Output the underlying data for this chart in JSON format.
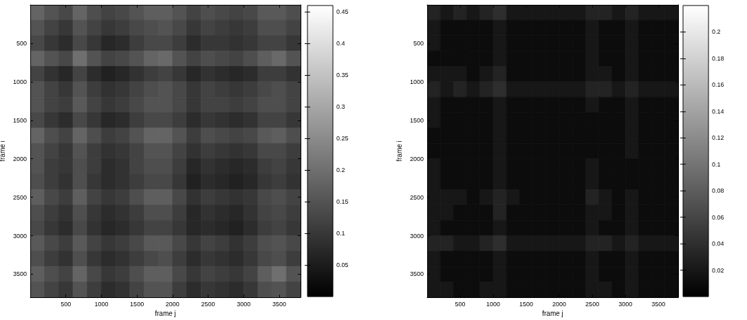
{
  "chart_data": [
    {
      "type": "heatmap",
      "xlabel": "frame j",
      "ylabel": "frame i",
      "x": [
        100,
        300,
        500,
        700,
        900,
        1100,
        1300,
        1500,
        1700,
        1900,
        2100,
        2300,
        2500,
        2700,
        2900,
        3100,
        3300,
        3500,
        3700
      ],
      "y": [
        100,
        300,
        500,
        700,
        900,
        1100,
        1300,
        1500,
        1700,
        1900,
        2100,
        2300,
        2500,
        2700,
        2900,
        3100,
        3300,
        3500,
        3700
      ],
      "xlim": [
        0,
        3800
      ],
      "ylim": [
        3800,
        0
      ],
      "xticks": [
        500,
        1000,
        1500,
        2000,
        2500,
        3000,
        3500
      ],
      "yticks": [
        500,
        1000,
        1500,
        2000,
        2500,
        3000,
        3500
      ],
      "clim": [
        0,
        0.46
      ],
      "cticks": [
        0.05,
        0.1,
        0.15,
        0.2,
        0.25,
        0.3,
        0.35,
        0.4,
        0.45
      ],
      "cells": [
        [
          0.18,
          0.15,
          0.13,
          0.18,
          0.14,
          0.12,
          0.13,
          0.15,
          0.17,
          0.17,
          0.15,
          0.12,
          0.14,
          0.13,
          0.12,
          0.13,
          0.16,
          0.16,
          0.14
        ],
        [
          0.15,
          0.12,
          0.1,
          0.15,
          0.12,
          0.1,
          0.11,
          0.13,
          0.14,
          0.15,
          0.13,
          0.1,
          0.12,
          0.11,
          0.1,
          0.11,
          0.14,
          0.14,
          0.12
        ],
        [
          0.13,
          0.1,
          0.08,
          0.13,
          0.1,
          0.07,
          0.08,
          0.11,
          0.13,
          0.13,
          0.11,
          0.08,
          0.1,
          0.1,
          0.09,
          0.1,
          0.12,
          0.12,
          0.1
        ],
        [
          0.18,
          0.15,
          0.13,
          0.2,
          0.15,
          0.12,
          0.13,
          0.15,
          0.18,
          0.19,
          0.15,
          0.12,
          0.14,
          0.13,
          0.12,
          0.14,
          0.17,
          0.19,
          0.15
        ],
        [
          0.12,
          0.09,
          0.07,
          0.12,
          0.08,
          0.06,
          0.07,
          0.09,
          0.11,
          0.12,
          0.1,
          0.07,
          0.09,
          0.08,
          0.07,
          0.08,
          0.11,
          0.11,
          0.09
        ],
        [
          0.15,
          0.12,
          0.1,
          0.15,
          0.11,
          0.09,
          0.1,
          0.12,
          0.14,
          0.15,
          0.13,
          0.1,
          0.12,
          0.11,
          0.1,
          0.11,
          0.13,
          0.14,
          0.12
        ],
        [
          0.15,
          0.12,
          0.11,
          0.16,
          0.12,
          0.1,
          0.11,
          0.13,
          0.15,
          0.15,
          0.13,
          0.1,
          0.12,
          0.12,
          0.11,
          0.12,
          0.14,
          0.14,
          0.12
        ],
        [
          0.13,
          0.1,
          0.08,
          0.13,
          0.1,
          0.07,
          0.08,
          0.11,
          0.13,
          0.13,
          0.11,
          0.08,
          0.1,
          0.09,
          0.08,
          0.09,
          0.12,
          0.12,
          0.1
        ],
        [
          0.18,
          0.14,
          0.12,
          0.18,
          0.14,
          0.11,
          0.12,
          0.15,
          0.18,
          0.18,
          0.15,
          0.11,
          0.14,
          0.13,
          0.12,
          0.13,
          0.16,
          0.17,
          0.14
        ],
        [
          0.15,
          0.12,
          0.1,
          0.15,
          0.11,
          0.09,
          0.1,
          0.12,
          0.15,
          0.15,
          0.12,
          0.09,
          0.11,
          0.1,
          0.09,
          0.1,
          0.13,
          0.13,
          0.11
        ],
        [
          0.15,
          0.11,
          0.1,
          0.14,
          0.11,
          0.08,
          0.09,
          0.12,
          0.14,
          0.14,
          0.11,
          0.07,
          0.09,
          0.08,
          0.07,
          0.08,
          0.11,
          0.12,
          0.1
        ],
        [
          0.14,
          0.11,
          0.09,
          0.14,
          0.1,
          0.08,
          0.09,
          0.11,
          0.13,
          0.13,
          0.1,
          0.06,
          0.08,
          0.07,
          0.06,
          0.07,
          0.1,
          0.11,
          0.09
        ],
        [
          0.17,
          0.13,
          0.11,
          0.17,
          0.12,
          0.1,
          0.11,
          0.14,
          0.17,
          0.17,
          0.13,
          0.09,
          0.11,
          0.1,
          0.09,
          0.1,
          0.13,
          0.14,
          0.12
        ],
        [
          0.14,
          0.11,
          0.09,
          0.14,
          0.1,
          0.08,
          0.09,
          0.11,
          0.14,
          0.14,
          0.11,
          0.07,
          0.09,
          0.08,
          0.07,
          0.09,
          0.12,
          0.13,
          0.11
        ],
        [
          0.13,
          0.1,
          0.08,
          0.13,
          0.09,
          0.07,
          0.08,
          0.1,
          0.12,
          0.12,
          0.1,
          0.07,
          0.08,
          0.07,
          0.06,
          0.08,
          0.11,
          0.12,
          0.1
        ],
        [
          0.16,
          0.13,
          0.11,
          0.16,
          0.12,
          0.1,
          0.11,
          0.13,
          0.16,
          0.16,
          0.13,
          0.1,
          0.12,
          0.11,
          0.09,
          0.11,
          0.14,
          0.15,
          0.13
        ],
        [
          0.14,
          0.11,
          0.09,
          0.14,
          0.1,
          0.08,
          0.09,
          0.11,
          0.13,
          0.14,
          0.11,
          0.08,
          0.1,
          0.09,
          0.08,
          0.1,
          0.13,
          0.14,
          0.11
        ],
        [
          0.17,
          0.14,
          0.12,
          0.18,
          0.13,
          0.1,
          0.11,
          0.14,
          0.17,
          0.17,
          0.13,
          0.1,
          0.12,
          0.11,
          0.1,
          0.12,
          0.17,
          0.2,
          0.15
        ],
        [
          0.15,
          0.12,
          0.1,
          0.15,
          0.11,
          0.08,
          0.09,
          0.12,
          0.15,
          0.15,
          0.11,
          0.08,
          0.1,
          0.09,
          0.08,
          0.1,
          0.14,
          0.15,
          0.12
        ]
      ]
    },
    {
      "type": "heatmap",
      "xlabel": "frame j",
      "ylabel": "frame i",
      "x": [
        100,
        300,
        500,
        700,
        900,
        1100,
        1300,
        1500,
        1700,
        1900,
        2100,
        2300,
        2500,
        2700,
        2900,
        3100,
        3300,
        3500,
        3700
      ],
      "y": [
        100,
        300,
        500,
        700,
        900,
        1100,
        1300,
        1500,
        1700,
        1900,
        2100,
        2300,
        2500,
        2700,
        2900,
        3100,
        3300,
        3500,
        3700
      ],
      "xlim": [
        0,
        3800
      ],
      "ylim": [
        3800,
        0
      ],
      "xticks": [
        500,
        1000,
        1500,
        2000,
        2500,
        3000,
        3500
      ],
      "yticks": [
        500,
        1000,
        1500,
        2000,
        2500,
        3000,
        3500
      ],
      "clim": [
        0,
        0.22
      ],
      "cticks": [
        0.02,
        0.04,
        0.06,
        0.08,
        0.1,
        0.12,
        0.14,
        0.16,
        0.18,
        0.2
      ],
      "cells": [
        [
          0.03,
          0.02,
          0.03,
          0.02,
          0.03,
          0.04,
          0.02,
          0.02,
          0.02,
          0.02,
          0.02,
          0.02,
          0.03,
          0.03,
          0.02,
          0.03,
          0.02,
          0.02,
          0.02
        ],
        [
          0.02,
          0.01,
          0.01,
          0.01,
          0.01,
          0.02,
          0.01,
          0.01,
          0.01,
          0.01,
          0.01,
          0.01,
          0.02,
          0.01,
          0.01,
          0.02,
          0.01,
          0.01,
          0.01
        ],
        [
          0.02,
          0.01,
          0.01,
          0.01,
          0.01,
          0.02,
          0.01,
          0.01,
          0.01,
          0.01,
          0.01,
          0.01,
          0.02,
          0.01,
          0.01,
          0.02,
          0.01,
          0.01,
          0.01
        ],
        [
          0.01,
          0.01,
          0.01,
          0.01,
          0.01,
          0.02,
          0.01,
          0.01,
          0.01,
          0.01,
          0.01,
          0.01,
          0.02,
          0.01,
          0.01,
          0.02,
          0.01,
          0.01,
          0.01
        ],
        [
          0.02,
          0.02,
          0.02,
          0.01,
          0.02,
          0.03,
          0.01,
          0.01,
          0.01,
          0.01,
          0.01,
          0.01,
          0.02,
          0.02,
          0.01,
          0.02,
          0.01,
          0.01,
          0.01
        ],
        [
          0.03,
          0.02,
          0.03,
          0.02,
          0.03,
          0.04,
          0.02,
          0.02,
          0.02,
          0.02,
          0.02,
          0.02,
          0.03,
          0.03,
          0.02,
          0.03,
          0.02,
          0.02,
          0.02
        ],
        [
          0.02,
          0.01,
          0.01,
          0.01,
          0.01,
          0.02,
          0.01,
          0.01,
          0.01,
          0.01,
          0.01,
          0.01,
          0.02,
          0.01,
          0.01,
          0.02,
          0.01,
          0.01,
          0.01
        ],
        [
          0.02,
          0.01,
          0.01,
          0.01,
          0.01,
          0.02,
          0.01,
          0.01,
          0.01,
          0.01,
          0.01,
          0.01,
          0.01,
          0.01,
          0.01,
          0.02,
          0.01,
          0.01,
          0.01
        ],
        [
          0.01,
          0.01,
          0.01,
          0.01,
          0.01,
          0.02,
          0.01,
          0.01,
          0.01,
          0.01,
          0.01,
          0.01,
          0.01,
          0.01,
          0.01,
          0.02,
          0.01,
          0.01,
          0.01
        ],
        [
          0.01,
          0.01,
          0.01,
          0.01,
          0.01,
          0.02,
          0.01,
          0.01,
          0.01,
          0.01,
          0.01,
          0.01,
          0.01,
          0.01,
          0.01,
          0.02,
          0.01,
          0.01,
          0.01
        ],
        [
          0.02,
          0.01,
          0.01,
          0.01,
          0.01,
          0.02,
          0.01,
          0.01,
          0.01,
          0.01,
          0.01,
          0.01,
          0.02,
          0.01,
          0.01,
          0.01,
          0.01,
          0.01,
          0.01
        ],
        [
          0.02,
          0.01,
          0.01,
          0.01,
          0.01,
          0.02,
          0.01,
          0.01,
          0.01,
          0.01,
          0.01,
          0.01,
          0.02,
          0.01,
          0.01,
          0.01,
          0.01,
          0.01,
          0.01
        ],
        [
          0.02,
          0.02,
          0.02,
          0.01,
          0.02,
          0.03,
          0.02,
          0.01,
          0.01,
          0.01,
          0.01,
          0.01,
          0.03,
          0.02,
          0.01,
          0.02,
          0.01,
          0.01,
          0.01
        ],
        [
          0.02,
          0.02,
          0.01,
          0.01,
          0.01,
          0.03,
          0.01,
          0.01,
          0.01,
          0.01,
          0.01,
          0.01,
          0.02,
          0.02,
          0.01,
          0.02,
          0.01,
          0.01,
          0.01
        ],
        [
          0.02,
          0.01,
          0.01,
          0.01,
          0.01,
          0.02,
          0.01,
          0.01,
          0.01,
          0.01,
          0.01,
          0.01,
          0.02,
          0.01,
          0.01,
          0.02,
          0.01,
          0.01,
          0.01
        ],
        [
          0.03,
          0.03,
          0.02,
          0.02,
          0.03,
          0.04,
          0.02,
          0.02,
          0.02,
          0.02,
          0.02,
          0.02,
          0.03,
          0.03,
          0.02,
          0.03,
          0.02,
          0.02,
          0.02
        ],
        [
          0.02,
          0.01,
          0.01,
          0.01,
          0.01,
          0.02,
          0.01,
          0.01,
          0.01,
          0.01,
          0.01,
          0.01,
          0.02,
          0.01,
          0.01,
          0.02,
          0.01,
          0.01,
          0.01
        ],
        [
          0.02,
          0.01,
          0.01,
          0.01,
          0.01,
          0.02,
          0.01,
          0.01,
          0.01,
          0.01,
          0.01,
          0.01,
          0.02,
          0.01,
          0.01,
          0.02,
          0.01,
          0.01,
          0.01
        ],
        [
          0.02,
          0.02,
          0.01,
          0.01,
          0.02,
          0.02,
          0.01,
          0.01,
          0.01,
          0.01,
          0.01,
          0.01,
          0.02,
          0.02,
          0.01,
          0.02,
          0.01,
          0.01,
          0.01
        ]
      ]
    }
  ]
}
